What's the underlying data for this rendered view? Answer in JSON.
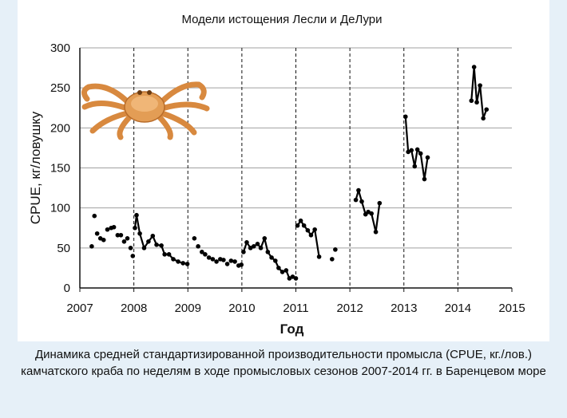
{
  "chart_data": {
    "type": "line",
    "title": "Модели истощения Лесли и ДеЛури",
    "xlabel": "Год",
    "ylabel": "CPUE, кг/ловушку",
    "xlim": [
      2007,
      2015
    ],
    "ylim": [
      0,
      300
    ],
    "x_ticks": [
      "2007",
      "2008",
      "2009",
      "2010",
      "2011",
      "2012",
      "2013",
      "2014",
      "2015"
    ],
    "y_ticks": [
      "0",
      "50",
      "100",
      "150",
      "200",
      "250",
      "300"
    ],
    "grid": {
      "horizontal": true,
      "vertical_dashed_years": [
        2008,
        2009,
        2010,
        2011,
        2012,
        2013,
        2014
      ]
    },
    "series": [
      {
        "season": "2007",
        "style": "dotted",
        "points": [
          [
            2007.22,
            52
          ],
          [
            2007.27,
            90
          ],
          [
            2007.32,
            68
          ],
          [
            2007.38,
            62
          ],
          [
            2007.44,
            60
          ],
          [
            2007.51,
            73
          ],
          [
            2007.58,
            75
          ],
          [
            2007.63,
            76
          ],
          [
            2007.7,
            66
          ],
          [
            2007.76,
            66
          ],
          [
            2007.82,
            58
          ],
          [
            2007.88,
            62
          ],
          [
            2007.94,
            50
          ],
          [
            2007.98,
            40
          ]
        ]
      },
      {
        "season": "2008",
        "style": "mixed",
        "points": [
          [
            2008.02,
            75
          ],
          [
            2008.05,
            91
          ],
          [
            2008.11,
            68
          ],
          [
            2008.19,
            50
          ],
          [
            2008.27,
            58
          ],
          [
            2008.35,
            65
          ],
          [
            2008.42,
            54
          ],
          [
            2008.51,
            53
          ],
          [
            2008.57,
            42
          ],
          [
            2008.65,
            42
          ],
          [
            2008.73,
            36
          ],
          [
            2008.82,
            33
          ],
          [
            2008.91,
            31
          ],
          [
            2008.99,
            30
          ]
        ]
      },
      {
        "season": "2009",
        "style": "dotted",
        "points": [
          [
            2009.12,
            62
          ],
          [
            2009.19,
            52
          ],
          [
            2009.26,
            45
          ],
          [
            2009.32,
            42
          ],
          [
            2009.39,
            38
          ],
          [
            2009.46,
            36
          ],
          [
            2009.53,
            33
          ],
          [
            2009.6,
            36
          ],
          [
            2009.66,
            35
          ],
          [
            2009.73,
            30
          ],
          [
            2009.8,
            34
          ],
          [
            2009.87,
            33
          ],
          [
            2009.94,
            28
          ],
          [
            2009.99,
            29
          ]
        ]
      },
      {
        "season": "2010",
        "style": "mixed",
        "points": [
          [
            2010.03,
            45
          ],
          [
            2010.09,
            57
          ],
          [
            2010.16,
            50
          ],
          [
            2010.22,
            52
          ],
          [
            2010.29,
            55
          ],
          [
            2010.35,
            50
          ],
          [
            2010.42,
            62
          ],
          [
            2010.48,
            45
          ],
          [
            2010.55,
            38
          ],
          [
            2010.62,
            34
          ],
          [
            2010.68,
            25
          ],
          [
            2010.75,
            20
          ],
          [
            2010.82,
            22
          ],
          [
            2010.88,
            12
          ],
          [
            2010.94,
            14
          ],
          [
            2011.0,
            12
          ]
        ]
      },
      {
        "season": "2011",
        "style": "solid",
        "points": [
          [
            2011.03,
            78
          ],
          [
            2011.09,
            84
          ],
          [
            2011.15,
            78
          ],
          [
            2011.22,
            72
          ],
          [
            2011.28,
            66
          ],
          [
            2011.35,
            73
          ],
          [
            2011.43,
            39
          ]
        ]
      },
      {
        "season": "2011b",
        "style": "dotted",
        "points": [
          [
            2011.67,
            36
          ],
          [
            2011.73,
            48
          ]
        ]
      },
      {
        "season": "2012",
        "style": "mixed",
        "points": [
          [
            2012.11,
            110
          ],
          [
            2012.16,
            122
          ],
          [
            2012.22,
            108
          ],
          [
            2012.29,
            92
          ],
          [
            2012.34,
            95
          ],
          [
            2012.4,
            93
          ],
          [
            2012.48,
            70
          ],
          [
            2012.55,
            106
          ]
        ]
      },
      {
        "season": "2013",
        "style": "solid",
        "points": [
          [
            2013.03,
            214
          ],
          [
            2013.08,
            170
          ],
          [
            2013.14,
            172
          ],
          [
            2013.2,
            152
          ],
          [
            2013.25,
            173
          ],
          [
            2013.31,
            168
          ],
          [
            2013.38,
            136
          ],
          [
            2013.44,
            163
          ]
        ]
      },
      {
        "season": "2014",
        "style": "solid",
        "points": [
          [
            2014.25,
            234
          ],
          [
            2014.3,
            276
          ],
          [
            2014.35,
            232
          ],
          [
            2014.41,
            253
          ],
          [
            2014.47,
            212
          ],
          [
            2014.53,
            223
          ]
        ]
      }
    ]
  },
  "caption": "Динамика средней стандартизированной производительности промысла (CPUE, кг./лов.) камчатского краба по неделям в ходе промысловых сезонов 2007-2014 гг. в Баренцевом море",
  "colors": {
    "line": "#000000",
    "grid": "#a0a0a0",
    "crab": "#e8a35a"
  }
}
